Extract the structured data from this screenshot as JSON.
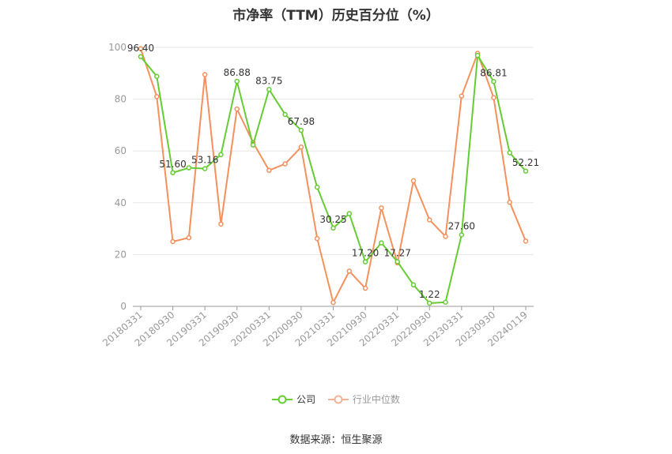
{
  "chart_data": {
    "type": "line",
    "title": "市净率（TTM）历史百分位（%）",
    "x_tick_labels": [
      "20180331",
      "20180930",
      "20190331",
      "20190930",
      "20200331",
      "20200930",
      "20210331",
      "20210930",
      "20220331",
      "20220930",
      "20230331",
      "20230930",
      "20240119"
    ],
    "y_ticks": [
      0,
      20,
      40,
      60,
      80,
      100
    ],
    "ylim": [
      0,
      100
    ],
    "grid": "horizontal",
    "legend_position": "bottom-center",
    "series": [
      {
        "name": "公司",
        "color": "#66cc33",
        "values": [
          96.4,
          88.8,
          51.6,
          53.5,
          53.16,
          58.6,
          86.88,
          62.3,
          83.75,
          74.1,
          67.98,
          46.0,
          30.25,
          35.8,
          17.2,
          24.5,
          17.27,
          8.3,
          1.22,
          1.6,
          27.6,
          96.9,
          86.81,
          59.3,
          52.21
        ],
        "labels": {
          "0": "96.40",
          "2": "51.60",
          "4": "53.16",
          "6": "86.88",
          "8": "83.75",
          "10": "67.98",
          "12": "30.25",
          "14": "17.20",
          "16": "17.27",
          "18": "1.22",
          "20": "27.60",
          "22": "86.81",
          "24": "52.21"
        }
      },
      {
        "name": "行业中位数",
        "color": "#f4915c",
        "values": [
          99.5,
          81.0,
          25.0,
          26.5,
          89.5,
          31.8,
          76.2,
          63.3,
          52.5,
          55.0,
          61.5,
          26.2,
          1.5,
          13.6,
          7.0,
          38.0,
          16.8,
          48.5,
          33.4,
          27.0,
          81.2,
          97.7,
          80.6,
          40.2,
          25.2
        ]
      }
    ]
  },
  "legend": {
    "company": "公司",
    "industry": "行业中位数"
  },
  "source": "数据来源：恒生聚源"
}
